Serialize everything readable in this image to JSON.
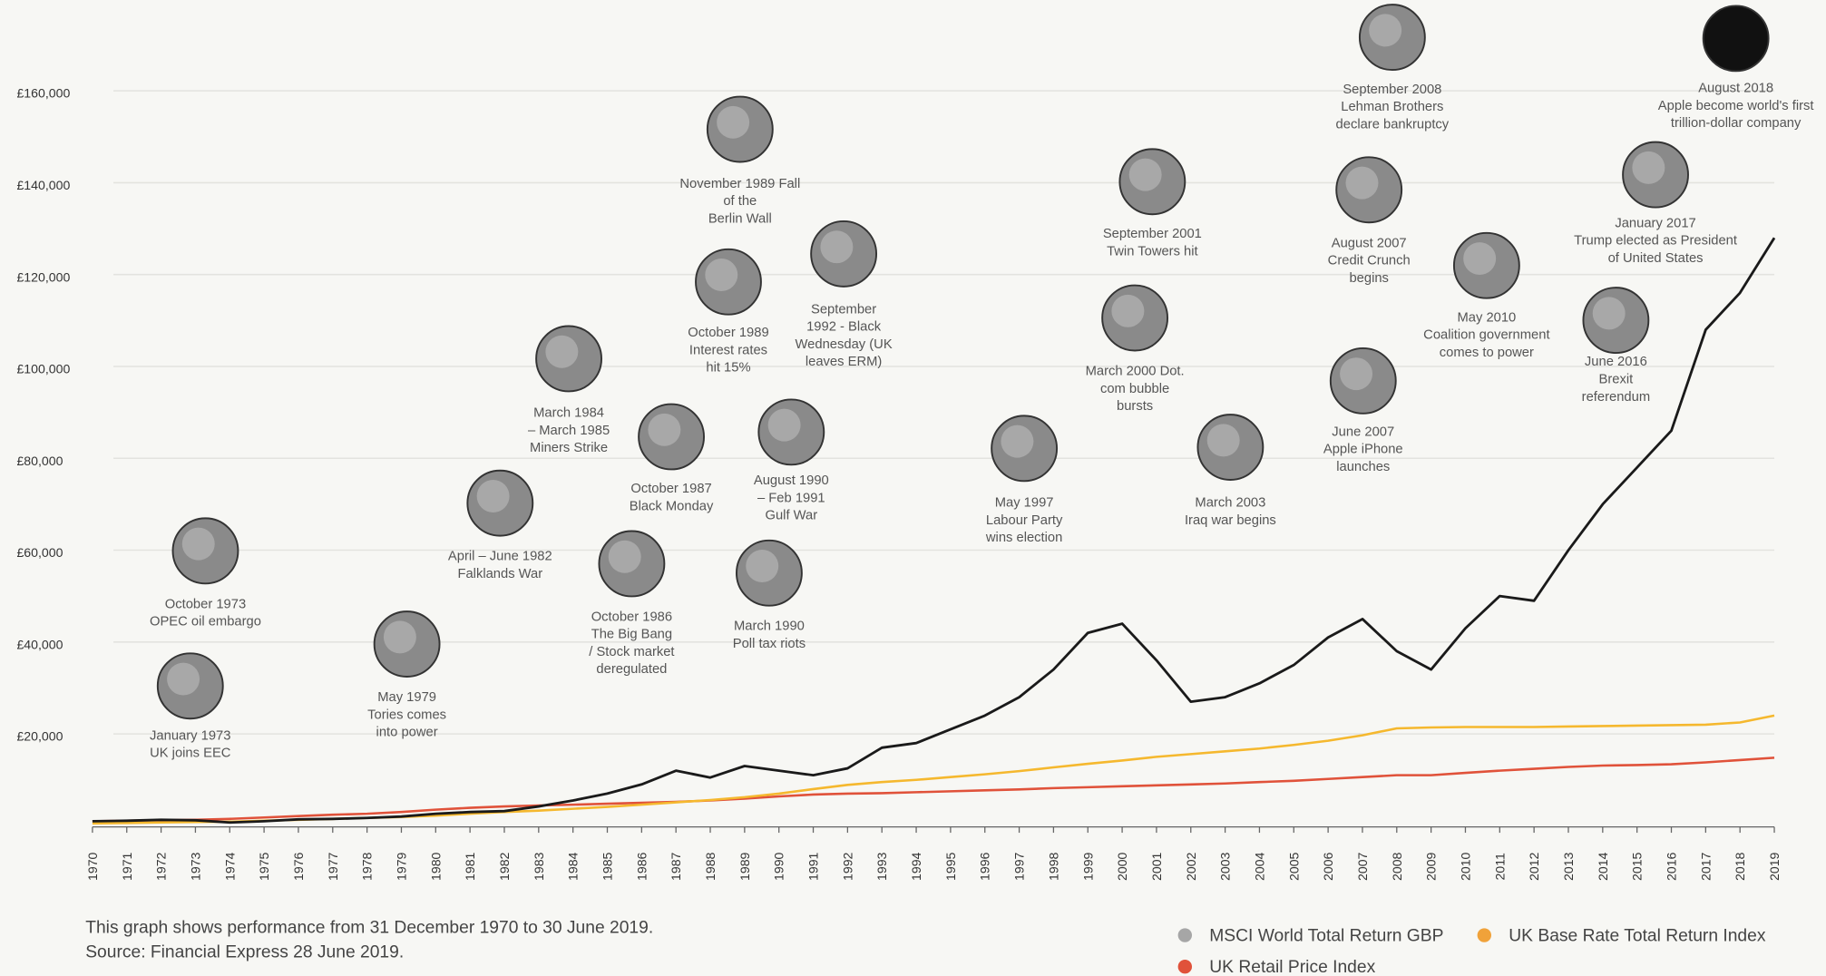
{
  "chart_data": {
    "type": "line",
    "x": [
      1970,
      1971,
      1972,
      1973,
      1974,
      1975,
      1976,
      1977,
      1978,
      1979,
      1980,
      1981,
      1982,
      1983,
      1984,
      1985,
      1986,
      1987,
      1988,
      1989,
      1990,
      1991,
      1992,
      1993,
      1994,
      1995,
      1996,
      1997,
      1998,
      1999,
      2000,
      2001,
      2002,
      2003,
      2004,
      2005,
      2006,
      2007,
      2008,
      2009,
      2010,
      2011,
      2012,
      2013,
      2014,
      2015,
      2016,
      2017,
      2018,
      2019
    ],
    "series": [
      {
        "name": "MSCI World Total Return GBP",
        "color": "#1a1a1a",
        "marker_color": "#a6a6a6",
        "values": [
          1000,
          1100,
          1300,
          1200,
          700,
          1000,
          1400,
          1500,
          1700,
          2000,
          2600,
          3000,
          3200,
          4200,
          5500,
          7000,
          9000,
          12000,
          10500,
          13000,
          12000,
          11000,
          12500,
          17000,
          18000,
          21000,
          24000,
          28000,
          34000,
          42000,
          44000,
          36000,
          27000,
          28000,
          31000,
          35000,
          41000,
          45000,
          38000,
          34000,
          43000,
          50000,
          49000,
          60000,
          70000,
          78000,
          86000,
          108000,
          116000,
          128000
        ]
      },
      {
        "name": "UK Base Rate Total Return Index",
        "color": "#f5b82e",
        "marker_color": "#f0a23a",
        "values": [
          500,
          600,
          700,
          800,
          900,
          1100,
          1300,
          1500,
          1700,
          1900,
          2200,
          2600,
          3000,
          3300,
          3700,
          4100,
          4600,
          5100,
          5600,
          6200,
          7000,
          8000,
          8900,
          9500,
          10000,
          10600,
          11200,
          11900,
          12700,
          13500,
          14200,
          15000,
          15600,
          16200,
          16800,
          17600,
          18500,
          19700,
          21200,
          21400,
          21500,
          21500,
          21500,
          21600,
          21700,
          21800,
          21900,
          22000,
          22500,
          24000
        ]
      },
      {
        "name": "UK Retail Price Index",
        "color": "#e0523a",
        "marker_color": "#e0523a",
        "values": [
          1000,
          1100,
          1200,
          1300,
          1500,
          1800,
          2100,
          2400,
          2600,
          3000,
          3500,
          3900,
          4200,
          4400,
          4600,
          4800,
          5000,
          5200,
          5500,
          5900,
          6400,
          6800,
          7000,
          7100,
          7300,
          7500,
          7700,
          7900,
          8200,
          8400,
          8600,
          8800,
          9000,
          9200,
          9500,
          9800,
          10200,
          10600,
          11000,
          11000,
          11500,
          12000,
          12400,
          12800,
          13100,
          13200,
          13400,
          13800,
          14300,
          14800
        ]
      }
    ],
    "xlim": [
      1970,
      2019
    ],
    "xticks": [
      1970,
      1971,
      1972,
      1973,
      1974,
      1975,
      1976,
      1977,
      1978,
      1979,
      1980,
      1981,
      1982,
      1983,
      1984,
      1985,
      1986,
      1987,
      1988,
      1989,
      1990,
      1991,
      1992,
      1993,
      1994,
      1995,
      1996,
      1997,
      1998,
      1999,
      2000,
      2001,
      2002,
      2003,
      2004,
      2005,
      2006,
      2007,
      2008,
      2009,
      2010,
      2011,
      2012,
      2013,
      2014,
      2015,
      2016,
      2017,
      2018,
      2019
    ],
    "ylim": [
      0,
      160000
    ],
    "yticks": [
      {
        "value": 20000,
        "label": "£20,000"
      },
      {
        "value": 40000,
        "label": "£40,000"
      },
      {
        "value": 60000,
        "label": "£60,000"
      },
      {
        "value": 80000,
        "label": "£80,000"
      },
      {
        "value": 100000,
        "label": "£100,000"
      },
      {
        "value": 120000,
        "label": "£120,000"
      },
      {
        "value": 140000,
        "label": "£140,000"
      },
      {
        "value": 160000,
        "label": "£160,000"
      }
    ],
    "grid": true,
    "annotations": [
      {
        "lines": [
          "January 1973",
          "UK joins EEC"
        ]
      },
      {
        "lines": [
          "October 1973",
          "OPEC oil embargo"
        ]
      },
      {
        "lines": [
          "May 1979",
          "Tories comes",
          "into power"
        ]
      },
      {
        "lines": [
          "April – June 1982",
          "Falklands War"
        ]
      },
      {
        "lines": [
          "March 1984",
          "– March 1985",
          "Miners Strike"
        ]
      },
      {
        "lines": [
          "October 1986",
          "The Big Bang",
          "/ Stock market",
          "deregulated"
        ]
      },
      {
        "lines": [
          "October 1987",
          "Black Monday"
        ]
      },
      {
        "lines": [
          "November 1989 Fall",
          "of the",
          "Berlin Wall"
        ]
      },
      {
        "lines": [
          "October 1989",
          "Interest rates",
          "hit 15%"
        ]
      },
      {
        "lines": [
          "March 1990",
          "Poll tax riots"
        ]
      },
      {
        "lines": [
          "August 1990",
          "– Feb 1991",
          "Gulf War"
        ]
      },
      {
        "lines": [
          "September",
          "1992 - Black",
          "Wednesday (UK",
          "leaves ERM)"
        ]
      },
      {
        "lines": [
          "May 1997",
          "Labour Party",
          "wins election"
        ]
      },
      {
        "lines": [
          "March 2000 Dot.",
          "com bubble",
          "bursts"
        ]
      },
      {
        "lines": [
          "September 2001",
          "Twin Towers hit"
        ]
      },
      {
        "lines": [
          "March 2003",
          "Iraq war begins"
        ]
      },
      {
        "lines": [
          "June 2007",
          "Apple iPhone",
          "launches"
        ]
      },
      {
        "lines": [
          "August 2007",
          "Credit Crunch",
          "begins"
        ]
      },
      {
        "lines": [
          "September 2008",
          "Lehman Brothers",
          "declare bankruptcy"
        ]
      },
      {
        "lines": [
          "May 2010",
          "Coalition government",
          "comes to power"
        ]
      },
      {
        "lines": [
          "June 2016",
          "Brexit",
          "referendum"
        ]
      },
      {
        "lines": [
          "January 2017",
          "Trump elected as President",
          "of United States"
        ]
      },
      {
        "lines": [
          "August 2018",
          "Apple become world's first",
          "trillion-dollar company"
        ]
      }
    ],
    "footnote": [
      "This graph shows performance from 31 December 1970 to 30 June 2019.",
      "Source: Financial Express 28 June 2019."
    ]
  }
}
